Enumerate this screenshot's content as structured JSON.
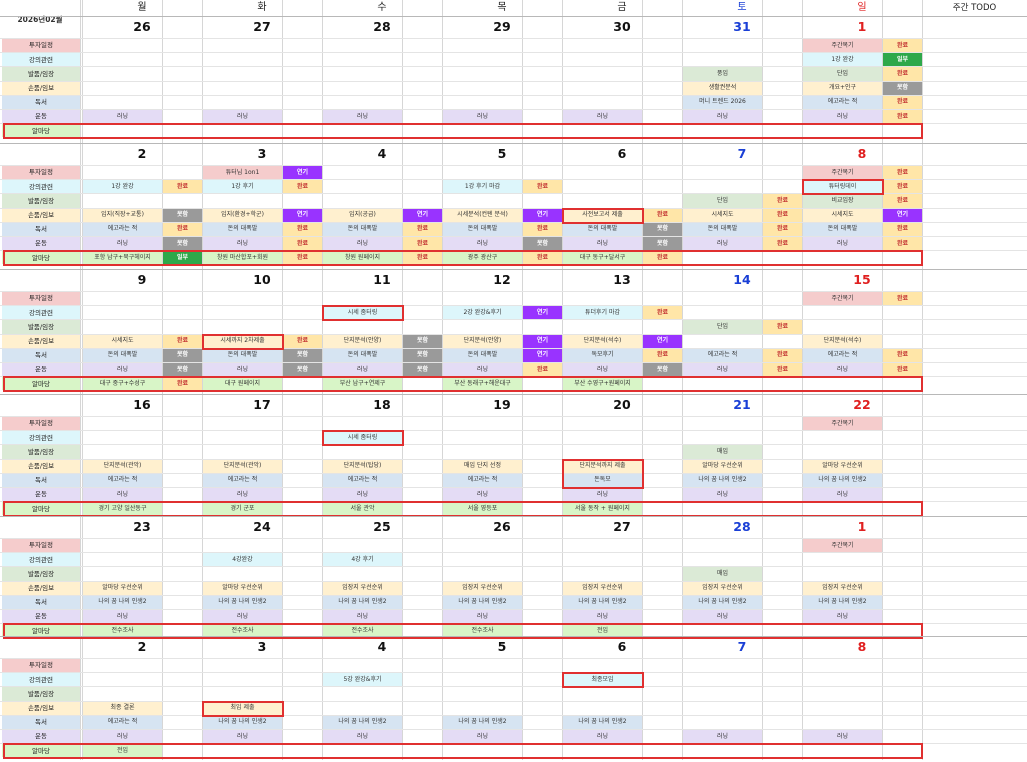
{
  "title": "2026년02월",
  "header": {
    "days": [
      "월",
      "화",
      "수",
      "목",
      "금",
      "토",
      "일"
    ],
    "todo": "주간 TODO"
  },
  "categories": [
    {
      "name": "투자일정",
      "color": "#f5cccc"
    },
    {
      "name": "강의관련",
      "color": "#ddf6fb"
    },
    {
      "name": "발품/임장",
      "color": "#dbead6"
    },
    {
      "name": "손품/임보",
      "color": "#fff0cf"
    },
    {
      "name": "독서",
      "color": "#d6e4f2"
    },
    {
      "name": "운동",
      "color": "#e4dcf5"
    },
    {
      "name": "알마당",
      "color": "#d8f5c7"
    }
  ],
  "status_colors": {
    "완료": "#ffe6a8",
    "연기": "#9933ff",
    "못함": "#9a9a9a",
    "일부": "#2ea84a"
  },
  "weeks": [
    {
      "dates": [
        "26",
        "27",
        "28",
        "29",
        "30",
        "31",
        "1"
      ],
      "date_colors": [
        "#111",
        "#111",
        "#111",
        "#111",
        "#111",
        "#1a3fd6",
        "#e02020"
      ],
      "entries": [
        {
          "c": 6,
          "r": 0,
          "t": "주간복기",
          "s": "완료"
        },
        {
          "c": 6,
          "r": 1,
          "t": "1강 완강",
          "s": "일부"
        },
        {
          "c": 5,
          "r": 2,
          "t": "풍임"
        },
        {
          "c": 6,
          "r": 2,
          "t": "단임",
          "s": "완료"
        },
        {
          "c": 5,
          "r": 3,
          "t": "생활권분석"
        },
        {
          "c": 6,
          "r": 3,
          "t": "개요+인구",
          "s": "못함"
        },
        {
          "c": 5,
          "r": 4,
          "t": "머니 트렌드 2026"
        },
        {
          "c": 6,
          "r": 4,
          "t": "에고라는 적",
          "s": "완료"
        },
        {
          "c": 0,
          "r": 5,
          "t": "러닝"
        },
        {
          "c": 1,
          "r": 5,
          "t": "러닝"
        },
        {
          "c": 2,
          "r": 5,
          "t": "러닝"
        },
        {
          "c": 3,
          "r": 5,
          "t": "러닝"
        },
        {
          "c": 4,
          "r": 5,
          "t": "러닝"
        },
        {
          "c": 5,
          "r": 5,
          "t": "러닝"
        },
        {
          "c": 6,
          "r": 5,
          "t": "러닝",
          "s": "완료"
        }
      ],
      "boxes": []
    },
    {
      "dates": [
        "2",
        "3",
        "4",
        "5",
        "6",
        "7",
        "8"
      ],
      "date_colors": [
        "#111",
        "#111",
        "#111",
        "#111",
        "#111",
        "#1a3fd6",
        "#e02020"
      ],
      "entries": [
        {
          "c": 1,
          "r": 0,
          "t": "튜터님 1on1",
          "s": "연기"
        },
        {
          "c": 6,
          "r": 0,
          "t": "주간복기",
          "s": "완료"
        },
        {
          "c": 0,
          "r": 1,
          "t": "1강 완강",
          "s": "완료"
        },
        {
          "c": 1,
          "r": 1,
          "t": "1강 후기",
          "s": "완료"
        },
        {
          "c": 3,
          "r": 1,
          "t": "1강 후기 마감",
          "s": "완료"
        },
        {
          "c": 6,
          "r": 1,
          "t": "튜터링데이",
          "s": "완료"
        },
        {
          "c": 5,
          "r": 2,
          "t": "단임",
          "s": "완료"
        },
        {
          "c": 6,
          "r": 2,
          "t": "비교임장",
          "s": "완료"
        },
        {
          "c": 0,
          "r": 3,
          "t": "입지(직장+교통)",
          "s": "못함"
        },
        {
          "c": 1,
          "r": 3,
          "t": "입지(환경+학군)",
          "s": "연기"
        },
        {
          "c": 2,
          "r": 3,
          "t": "입지(공급)",
          "s": "연기"
        },
        {
          "c": 3,
          "r": 3,
          "t": "시세분석(컨텐 분석)",
          "s": "연기"
        },
        {
          "c": 4,
          "r": 3,
          "t": "사전보고서 제출",
          "s": "완료"
        },
        {
          "c": 5,
          "r": 3,
          "t": "시세지도",
          "s": "완료"
        },
        {
          "c": 6,
          "r": 3,
          "t": "시세지도",
          "s": "연기"
        },
        {
          "c": 0,
          "r": 4,
          "t": "에고라는 적",
          "s": "완료"
        },
        {
          "c": 1,
          "r": 4,
          "t": "돈의 대폭발",
          "s": "완료"
        },
        {
          "c": 2,
          "r": 4,
          "t": "돈의 대폭발",
          "s": "완료"
        },
        {
          "c": 3,
          "r": 4,
          "t": "돈의 대폭발",
          "s": "완료"
        },
        {
          "c": 4,
          "r": 4,
          "t": "돈의 대폭발",
          "s": "못함"
        },
        {
          "c": 5,
          "r": 4,
          "t": "돈의 대폭발",
          "s": "완료"
        },
        {
          "c": 6,
          "r": 4,
          "t": "돈의 대폭발",
          "s": "완료"
        },
        {
          "c": 0,
          "r": 5,
          "t": "러닝",
          "s": "못함"
        },
        {
          "c": 1,
          "r": 5,
          "t": "러닝",
          "s": "완료"
        },
        {
          "c": 2,
          "r": 5,
          "t": "러닝",
          "s": "완료"
        },
        {
          "c": 3,
          "r": 5,
          "t": "러닝",
          "s": "못함"
        },
        {
          "c": 4,
          "r": 5,
          "t": "러닝",
          "s": "못함"
        },
        {
          "c": 5,
          "r": 5,
          "t": "러닝",
          "s": "완료"
        },
        {
          "c": 6,
          "r": 5,
          "t": "러닝",
          "s": "완료"
        },
        {
          "c": 0,
          "r": 6,
          "t": "포항 남구+북구헤이지",
          "s": "일부"
        },
        {
          "c": 1,
          "r": 6,
          "t": "창원 마산합포+회원",
          "s": "완료"
        },
        {
          "c": 2,
          "r": 6,
          "t": "창원 원페이지",
          "s": "완료"
        },
        {
          "c": 3,
          "r": 6,
          "t": "광주 광산구",
          "s": "완료"
        },
        {
          "c": 4,
          "r": 6,
          "t": "대구 동구+달서구",
          "s": "완료"
        }
      ],
      "boxes": [
        {
          "c": 4,
          "r": 3
        },
        {
          "c": 6,
          "r": 1
        }
      ]
    },
    {
      "dates": [
        "9",
        "10",
        "11",
        "12",
        "13",
        "14",
        "15"
      ],
      "date_colors": [
        "#111",
        "#111",
        "#111",
        "#111",
        "#111",
        "#1a3fd6",
        "#e02020"
      ],
      "entries": [
        {
          "c": 6,
          "r": 0,
          "t": "주간복기",
          "s": "완료"
        },
        {
          "c": 2,
          "r": 1,
          "t": "시세 줌터링"
        },
        {
          "c": 3,
          "r": 1,
          "t": "2강 완강&후기",
          "s": "연기"
        },
        {
          "c": 4,
          "r": 1,
          "t": "튜더후기 마감",
          "s": "완료"
        },
        {
          "c": 5,
          "r": 2,
          "t": "단임",
          "s": "완료"
        },
        {
          "c": 0,
          "r": 3,
          "t": "시세지도",
          "s": "완료"
        },
        {
          "c": 1,
          "r": 3,
          "t": "시세까지 2차제출",
          "s": "완료"
        },
        {
          "c": 2,
          "r": 3,
          "t": "단지분석(안양)",
          "s": "못함"
        },
        {
          "c": 3,
          "r": 3,
          "t": "단지분석(안양)",
          "s": "연기"
        },
        {
          "c": 4,
          "r": 3,
          "t": "단지분석(석수)",
          "s": "연기"
        },
        {
          "c": 6,
          "r": 3,
          "t": "단지분석(석수)"
        },
        {
          "c": 0,
          "r": 4,
          "t": "돈의 대폭발",
          "s": "못함"
        },
        {
          "c": 1,
          "r": 4,
          "t": "돈의 대폭발",
          "s": "못함"
        },
        {
          "c": 2,
          "r": 4,
          "t": "돈의 대폭발",
          "s": "못함"
        },
        {
          "c": 3,
          "r": 4,
          "t": "돈의 대폭발",
          "s": "연기"
        },
        {
          "c": 4,
          "r": 4,
          "t": "독모후기",
          "s": "완료"
        },
        {
          "c": 5,
          "r": 4,
          "t": "에고라는 적",
          "s": "완료"
        },
        {
          "c": 6,
          "r": 4,
          "t": "에고라는 적",
          "s": "완료"
        },
        {
          "c": 0,
          "r": 5,
          "t": "러닝",
          "s": "못함"
        },
        {
          "c": 1,
          "r": 5,
          "t": "러닝",
          "s": "못함"
        },
        {
          "c": 2,
          "r": 5,
          "t": "러닝",
          "s": "못함"
        },
        {
          "c": 3,
          "r": 5,
          "t": "러닝",
          "s": "완료"
        },
        {
          "c": 4,
          "r": 5,
          "t": "러닝",
          "s": "못함"
        },
        {
          "c": 5,
          "r": 5,
          "t": "러닝",
          "s": "완료"
        },
        {
          "c": 6,
          "r": 5,
          "t": "러닝",
          "s": "완료"
        },
        {
          "c": 0,
          "r": 6,
          "t": "대구 중구+수성구",
          "s": "완료"
        },
        {
          "c": 1,
          "r": 6,
          "t": "대구 원페이지"
        },
        {
          "c": 2,
          "r": 6,
          "t": "부산 남구+연제구"
        },
        {
          "c": 3,
          "r": 6,
          "t": "부산 동래구+해운대구"
        },
        {
          "c": 4,
          "r": 6,
          "t": "부산 수영구+원페이지"
        }
      ],
      "boxes": [
        {
          "c": 2,
          "r": 1
        },
        {
          "c": 1,
          "r": 3
        }
      ]
    },
    {
      "dates": [
        "16",
        "17",
        "18",
        "19",
        "20",
        "21",
        "22"
      ],
      "date_colors": [
        "#111",
        "#111",
        "#111",
        "#111",
        "#111",
        "#1a3fd6",
        "#e02020"
      ],
      "entries": [
        {
          "c": 6,
          "r": 0,
          "t": "주간복기"
        },
        {
          "c": 2,
          "r": 1,
          "t": "시세 줌터링"
        },
        {
          "c": 5,
          "r": 2,
          "t": "매임"
        },
        {
          "c": 0,
          "r": 3,
          "t": "단지분석(관악)"
        },
        {
          "c": 1,
          "r": 3,
          "t": "단지분석(관악)"
        },
        {
          "c": 2,
          "r": 3,
          "t": "단지분석(탑당)"
        },
        {
          "c": 3,
          "r": 3,
          "t": "매임 단지 선정"
        },
        {
          "c": 4,
          "r": 3,
          "t": "단지분석까지 제출"
        },
        {
          "c": 5,
          "r": 3,
          "t": "알마당 우선순위"
        },
        {
          "c": 6,
          "r": 3,
          "t": "알마당 우선순위"
        },
        {
          "c": 0,
          "r": 4,
          "t": "에고라는 적"
        },
        {
          "c": 1,
          "r": 4,
          "t": "에고라는 적"
        },
        {
          "c": 2,
          "r": 4,
          "t": "에고라는 적"
        },
        {
          "c": 3,
          "r": 4,
          "t": "에고라는 적"
        },
        {
          "c": 4,
          "r": 4,
          "t": "돈독모"
        },
        {
          "c": 5,
          "r": 4,
          "t": "나의 꿈 나의 인생2"
        },
        {
          "c": 6,
          "r": 4,
          "t": "나의 꿈 나의 인생2"
        },
        {
          "c": 0,
          "r": 5,
          "t": "러닝"
        },
        {
          "c": 1,
          "r": 5,
          "t": "러닝"
        },
        {
          "c": 2,
          "r": 5,
          "t": "러닝"
        },
        {
          "c": 3,
          "r": 5,
          "t": "러닝"
        },
        {
          "c": 4,
          "r": 5,
          "t": "러닝"
        },
        {
          "c": 5,
          "r": 5,
          "t": "러닝"
        },
        {
          "c": 6,
          "r": 5,
          "t": "러닝"
        },
        {
          "c": 0,
          "r": 6,
          "t": "경기 고양 일산동구"
        },
        {
          "c": 1,
          "r": 6,
          "t": "경기 군포"
        },
        {
          "c": 2,
          "r": 6,
          "t": "서울 관악"
        },
        {
          "c": 3,
          "r": 6,
          "t": "서울 영등포"
        },
        {
          "c": 4,
          "r": 6,
          "t": "서울 동작 + 원페이지"
        }
      ],
      "boxes": [
        {
          "c": 2,
          "r": 1
        },
        {
          "c": 4,
          "r": 3,
          "h": 2
        }
      ]
    },
    {
      "dates": [
        "23",
        "24",
        "25",
        "26",
        "27",
        "28",
        "1"
      ],
      "date_colors": [
        "#111",
        "#111",
        "#111",
        "#111",
        "#111",
        "#1a3fd6",
        "#e02020"
      ],
      "entries": [
        {
          "c": 6,
          "r": 0,
          "t": "주간복기"
        },
        {
          "c": 1,
          "r": 1,
          "t": "4강완강"
        },
        {
          "c": 2,
          "r": 1,
          "t": "4강 후기"
        },
        {
          "c": 5,
          "r": 2,
          "t": "매임"
        },
        {
          "c": 0,
          "r": 3,
          "t": "알마당 우선순위"
        },
        {
          "c": 1,
          "r": 3,
          "t": "알마당 우선순위"
        },
        {
          "c": 2,
          "r": 3,
          "t": "임장지 우선순위"
        },
        {
          "c": 3,
          "r": 3,
          "t": "임장지 우선순위"
        },
        {
          "c": 4,
          "r": 3,
          "t": "임장지 우선순위"
        },
        {
          "c": 5,
          "r": 3,
          "t": "임장지 우선순위"
        },
        {
          "c": 6,
          "r": 3,
          "t": "임장지 우선순위"
        },
        {
          "c": 0,
          "r": 4,
          "t": "나의 꿈 나의 인생2"
        },
        {
          "c": 1,
          "r": 4,
          "t": "나의 꿈 나의 인생2"
        },
        {
          "c": 2,
          "r": 4,
          "t": "나의 꿈 나의 인생2"
        },
        {
          "c": 3,
          "r": 4,
          "t": "나의 꿈 나의 인생2"
        },
        {
          "c": 4,
          "r": 4,
          "t": "나의 꿈 나의 인생2"
        },
        {
          "c": 5,
          "r": 4,
          "t": "나의 꿈 나의 인생2"
        },
        {
          "c": 6,
          "r": 4,
          "t": "나의 꿈 나의 인생2"
        },
        {
          "c": 0,
          "r": 5,
          "t": "러닝"
        },
        {
          "c": 1,
          "r": 5,
          "t": "러닝"
        },
        {
          "c": 2,
          "r": 5,
          "t": "러닝"
        },
        {
          "c": 3,
          "r": 5,
          "t": "러닝"
        },
        {
          "c": 4,
          "r": 5,
          "t": "러닝"
        },
        {
          "c": 5,
          "r": 5,
          "t": "러닝"
        },
        {
          "c": 6,
          "r": 5,
          "t": "러닝"
        },
        {
          "c": 0,
          "r": 6,
          "t": "전수조사"
        },
        {
          "c": 1,
          "r": 6,
          "t": "전수조사"
        },
        {
          "c": 2,
          "r": 6,
          "t": "전수조사"
        },
        {
          "c": 3,
          "r": 6,
          "t": "전수조사"
        },
        {
          "c": 4,
          "r": 6,
          "t": "전임"
        }
      ],
      "boxes": []
    },
    {
      "dates": [
        "2",
        "3",
        "4",
        "5",
        "6",
        "7",
        "8"
      ],
      "date_colors": [
        "#111",
        "#111",
        "#111",
        "#111",
        "#111",
        "#1a3fd6",
        "#e02020"
      ],
      "entries": [
        {
          "c": 2,
          "r": 1,
          "t": "5강 완강&후기"
        },
        {
          "c": 4,
          "r": 1,
          "t": "최종모임"
        },
        {
          "c": 0,
          "r": 3,
          "t": "최종 결론"
        },
        {
          "c": 1,
          "r": 3,
          "t": "최임 제출"
        },
        {
          "c": 0,
          "r": 4,
          "t": "에고라는 적"
        },
        {
          "c": 1,
          "r": 4,
          "t": "나의 꿈 나의 인생2"
        },
        {
          "c": 2,
          "r": 4,
          "t": "나의 꿈 나의 인생2"
        },
        {
          "c": 3,
          "r": 4,
          "t": "나의 꿈 나의 인생2"
        },
        {
          "c": 4,
          "r": 4,
          "t": "나의 꿈 나의 인생2"
        },
        {
          "c": 0,
          "r": 5,
          "t": "러닝"
        },
        {
          "c": 1,
          "r": 5,
          "t": "러닝"
        },
        {
          "c": 2,
          "r": 5,
          "t": "러닝"
        },
        {
          "c": 3,
          "r": 5,
          "t": "러닝"
        },
        {
          "c": 4,
          "r": 5,
          "t": "러닝"
        },
        {
          "c": 5,
          "r": 5,
          "t": "러닝"
        },
        {
          "c": 6,
          "r": 5,
          "t": "러닝"
        },
        {
          "c": 0,
          "r": 6,
          "t": "전임"
        }
      ],
      "boxes": [
        {
          "c": 4,
          "r": 1
        },
        {
          "c": 1,
          "r": 3
        }
      ]
    }
  ]
}
